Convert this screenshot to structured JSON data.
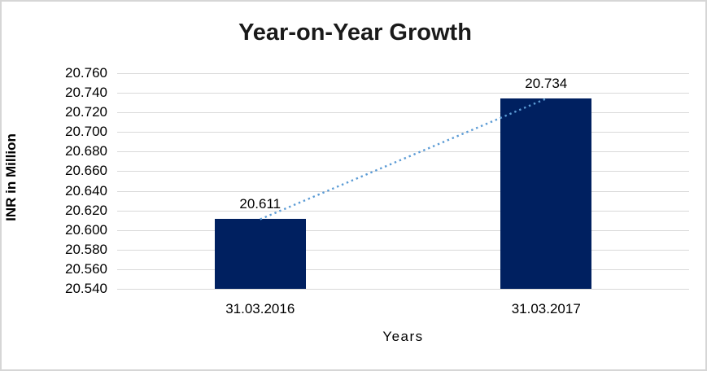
{
  "chart_data": {
    "type": "bar",
    "title": "Year-on-Year Growth",
    "xlabel": "Years",
    "ylabel": "INR in Million",
    "categories": [
      "31.03.2016",
      "31.03.2017"
    ],
    "series": [
      {
        "name": "INR in Million",
        "values": [
          20.611,
          20.734
        ]
      }
    ],
    "data_labels": [
      "20.611",
      "20.734"
    ],
    "ylim": [
      20.54,
      20.76
    ],
    "ytick_step": 0.02,
    "yticks": [
      "20.760",
      "20.740",
      "20.720",
      "20.700",
      "20.680",
      "20.660",
      "20.640",
      "20.620",
      "20.600",
      "20.580",
      "20.560",
      "20.540"
    ],
    "grid": true,
    "legend": "none",
    "colors": {
      "bar": "#002060",
      "trendline": "#5B9BD5",
      "gridline": "#D9D9D9",
      "text": "#000000",
      "frame_border": "#D6D6D6"
    },
    "trendline": {
      "style": "dotted",
      "from_value": 20.611,
      "to_value": 20.734
    }
  }
}
